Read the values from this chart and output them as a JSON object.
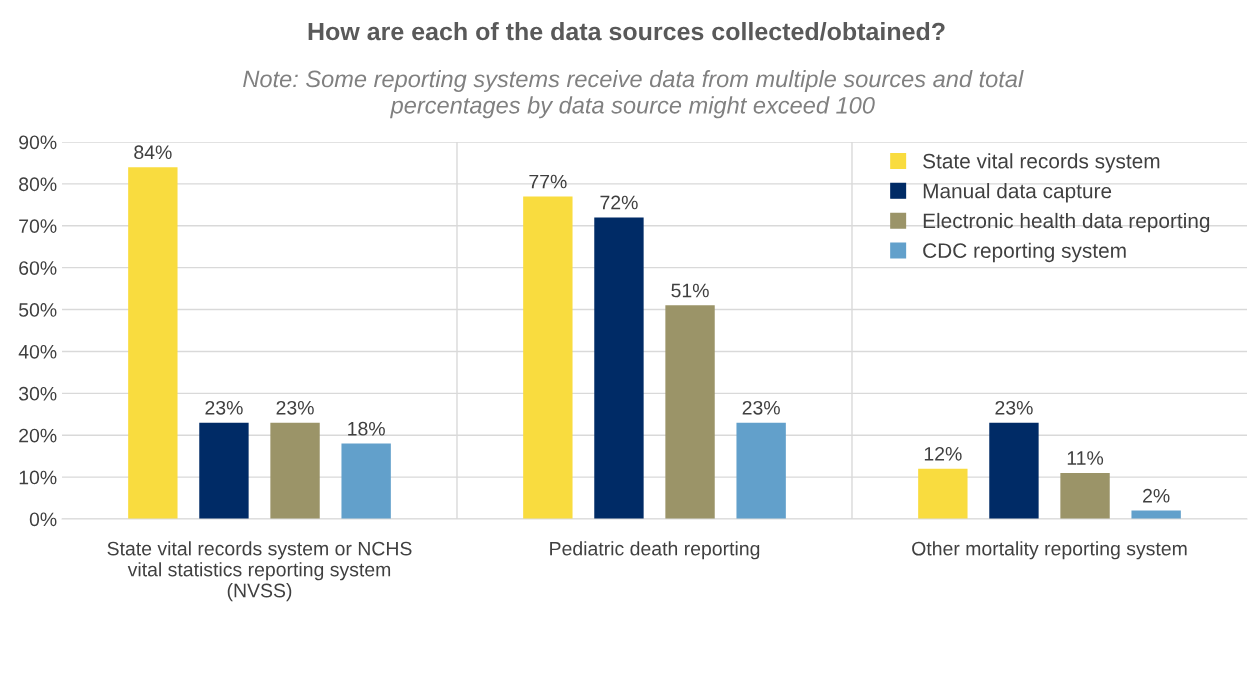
{
  "chart_data": {
    "type": "bar",
    "title": "How are each of the data sources collected/obtained?",
    "subtitle": "Note: Some reporting systems receive data from multiple sources and total\npercentages by data source might exceed 100",
    "categories": [
      "State vital records system or NCHS\nvital statistics reporting system\n(NVSS)",
      "Pediatric death reporting",
      "Other mortality reporting system"
    ],
    "series": [
      {
        "name": "State vital records system",
        "color": "#f9dc3f",
        "values": [
          84,
          77,
          12
        ],
        "value_labels": [
          "84%",
          "77%",
          "12%"
        ]
      },
      {
        "name": "Manual data capture",
        "color": "#002b66",
        "values": [
          23,
          72,
          23
        ],
        "value_labels": [
          "23%",
          "72%",
          "23%"
        ]
      },
      {
        "name": "Electronic health data reporting",
        "color": "#9b9468",
        "values": [
          23,
          51,
          11
        ],
        "value_labels": [
          "23%",
          "51%",
          "11%"
        ]
      },
      {
        "name": "CDC reporting system",
        "color": "#62a0cb",
        "values": [
          18,
          23,
          2
        ],
        "value_labels": [
          "18%",
          "23%",
          "2%"
        ]
      }
    ],
    "ylim": [
      0,
      90
    ],
    "yticks": [
      {
        "value": 0,
        "label": "0%"
      },
      {
        "value": 10,
        "label": "10%"
      },
      {
        "value": 20,
        "label": "20%"
      },
      {
        "value": 30,
        "label": "30%"
      },
      {
        "value": 40,
        "label": "40%"
      },
      {
        "value": 50,
        "label": "50%"
      },
      {
        "value": 60,
        "label": "60%"
      },
      {
        "value": 70,
        "label": "70%"
      },
      {
        "value": 80,
        "label": "80%"
      },
      {
        "value": 90,
        "label": "90%"
      }
    ],
    "grid": true,
    "legend": "top right"
  }
}
